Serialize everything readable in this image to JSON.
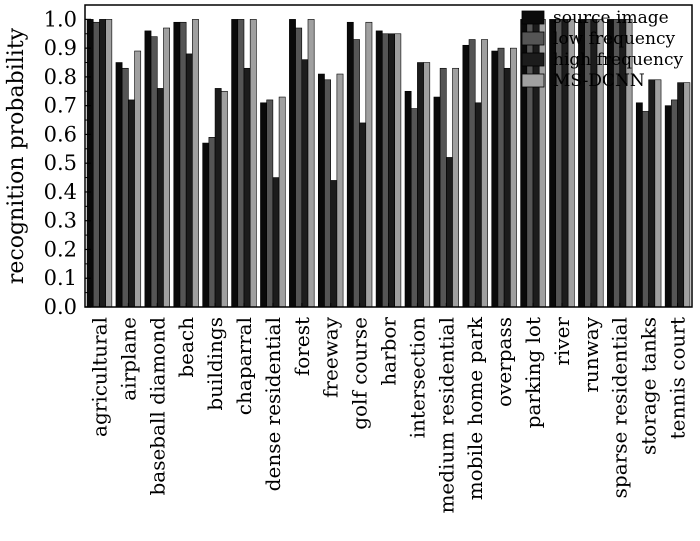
{
  "chart_data": {
    "type": "bar",
    "ylabel": "recognition probability",
    "xlabel": "",
    "ylim": [
      0.0,
      1.05
    ],
    "yticks": [
      "0.0",
      "0.1",
      "0.2",
      "0.3",
      "0.4",
      "0.5",
      "0.6",
      "0.7",
      "0.8",
      "0.9",
      "1.0"
    ],
    "grid": false,
    "legend_position": "top-right",
    "categories": [
      "agricultural",
      "airplane",
      "baseball diamond",
      "beach",
      "buildings",
      "chaparral",
      "dense residential",
      "forest",
      "freeway",
      "golf course",
      "harbor",
      "intersection",
      "medium residential",
      "mobile home park",
      "overpass",
      "parking lot",
      "river",
      "runway",
      "sparse residential",
      "storage tanks",
      "tennis court"
    ],
    "series": [
      {
        "name": "source image",
        "color": "#0a0a0a",
        "values": [
          1.0,
          0.85,
          0.96,
          0.99,
          0.57,
          1.0,
          0.71,
          1.0,
          0.81,
          0.99,
          0.96,
          0.75,
          0.73,
          0.91,
          0.89,
          1.0,
          1.0,
          1.0,
          1.0,
          0.71,
          0.7
        ]
      },
      {
        "name": "low frequency",
        "color": "#555555",
        "values": [
          0.99,
          0.83,
          0.94,
          0.99,
          0.59,
          1.0,
          0.72,
          0.97,
          0.79,
          0.93,
          0.95,
          0.69,
          0.83,
          0.93,
          0.9,
          1.0,
          1.0,
          1.0,
          1.0,
          0.68,
          0.72
        ]
      },
      {
        "name": "high frequency",
        "color": "#1c1c1c",
        "values": [
          1.0,
          0.72,
          0.76,
          0.88,
          0.76,
          0.83,
          0.45,
          0.86,
          0.44,
          0.64,
          0.95,
          0.85,
          0.52,
          0.71,
          0.83,
          1.0,
          1.0,
          1.0,
          1.0,
          0.79,
          0.78
        ]
      },
      {
        "name": "MS-DCNN",
        "color": "#a0a0a0",
        "values": [
          1.0,
          0.89,
          0.97,
          1.0,
          0.75,
          1.0,
          0.73,
          1.0,
          0.81,
          0.99,
          0.95,
          0.85,
          0.83,
          0.93,
          0.9,
          1.0,
          1.0,
          1.0,
          1.0,
          0.79,
          0.78
        ]
      }
    ]
  }
}
